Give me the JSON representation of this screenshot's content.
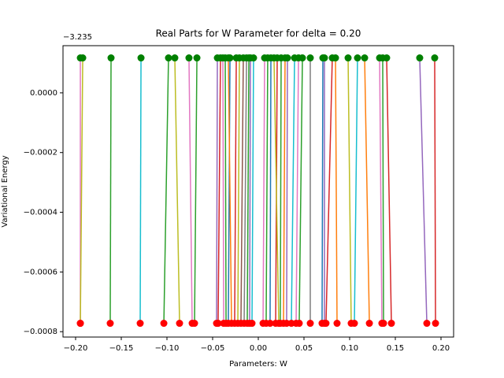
{
  "chart_data": {
    "type": "line",
    "title": "Real Parts for W Parameter for delta = 0.20",
    "xlabel": "Parameters: W",
    "ylabel": "Variational Energy",
    "y_offset": {
      "value": -3.235,
      "label": "−3.235"
    },
    "xlim": [
      -0.2138,
      0.2138
    ],
    "ylim": [
      -0.000818,
      0.000158
    ],
    "xticks": [
      {
        "value": -0.2,
        "label": "−0.20"
      },
      {
        "value": -0.15,
        "label": "−0.15"
      },
      {
        "value": -0.1,
        "label": "−0.10"
      },
      {
        "value": -0.05,
        "label": "−0.05"
      },
      {
        "value": 0,
        "label": "0.00"
      },
      {
        "value": 0.05,
        "label": "0.05"
      },
      {
        "value": 0.1,
        "label": "0.10"
      },
      {
        "value": 0.15,
        "label": "0.15"
      },
      {
        "value": 0.2,
        "label": "0.20"
      }
    ],
    "yticks": [
      {
        "value": 0,
        "label": "0.0000"
      },
      {
        "value": -0.0002,
        "label": "−0.0002"
      },
      {
        "value": -0.0004,
        "label": "−0.0004"
      },
      {
        "value": -0.0006,
        "label": "−0.0006"
      },
      {
        "value": -0.0008,
        "label": "−0.0008"
      }
    ],
    "marker_colors": [
      "#ff0000",
      "#008000"
    ],
    "series": [
      {
        "color": "#e377c2",
        "x": [
          -0.1948,
          -0.1948
        ],
        "values": [
          -0.000772,
          0.000117
        ]
      },
      {
        "color": "#bcbd22",
        "x": [
          -0.1948,
          -0.1922
        ],
        "values": [
          -0.000772,
          0.000117
        ]
      },
      {
        "color": "#2ca02c",
        "x": [
          -0.1621,
          -0.1612
        ],
        "values": [
          -0.000772,
          0.000117
        ]
      },
      {
        "color": "#17becf",
        "x": [
          -0.1293,
          -0.1284
        ],
        "values": [
          -0.000772,
          0.000117
        ]
      },
      {
        "color": "#2ca02c",
        "x": [
          -0.1034,
          -0.0983
        ],
        "values": [
          -0.000772,
          0.000117
        ]
      },
      {
        "color": "#bcbd22",
        "x": [
          -0.0862,
          -0.0914
        ],
        "values": [
          -0.000772,
          0.000117
        ]
      },
      {
        "color": "#e377c2",
        "x": [
          -0.0724,
          -0.0759
        ],
        "values": [
          -0.000772,
          0.000117
        ]
      },
      {
        "color": "#2ca02c",
        "x": [
          -0.0698,
          -0.0672
        ],
        "values": [
          -0.000772,
          0.000117
        ]
      },
      {
        "color": "#9467bd",
        "x": [
          -0.0457,
          -0.0448
        ],
        "values": [
          -0.000772,
          0.000117
        ]
      },
      {
        "color": "#d62728",
        "x": [
          -0.044,
          -0.0414
        ],
        "values": [
          -0.000772,
          0.000117
        ]
      },
      {
        "color": "#e377c2",
        "x": [
          -0.0379,
          -0.0388
        ],
        "values": [
          -0.000772,
          0.000117
        ]
      },
      {
        "color": "#2ca02c",
        "x": [
          -0.0353,
          -0.0362
        ],
        "values": [
          -0.000772,
          0.000117
        ]
      },
      {
        "color": "#1f77b4",
        "x": [
          -0.0328,
          -0.031
        ],
        "values": [
          -0.000772,
          0.000117
        ]
      },
      {
        "color": "#ff7f0e",
        "x": [
          -0.0293,
          -0.0328
        ],
        "values": [
          -0.000772,
          0.000117
        ]
      },
      {
        "color": "#d62728",
        "x": [
          -0.0259,
          -0.0241
        ],
        "values": [
          -0.000772,
          0.000117
        ]
      },
      {
        "color": "#bcbd22",
        "x": [
          -0.0224,
          -0.0207
        ],
        "values": [
          -0.000772,
          0.000117
        ]
      },
      {
        "color": "#8c564b",
        "x": [
          -0.019,
          -0.0164
        ],
        "values": [
          -0.000772,
          0.000117
        ]
      },
      {
        "color": "#7f7f7f",
        "x": [
          -0.0155,
          -0.0129
        ],
        "values": [
          -0.000772,
          0.000117
        ]
      },
      {
        "color": "#2ca02c",
        "x": [
          -0.0121,
          -0.0103
        ],
        "values": [
          -0.000772,
          0.000117
        ]
      },
      {
        "color": "#9467bd",
        "x": [
          -0.0095,
          -0.0086
        ],
        "values": [
          -0.000772,
          0.000117
        ]
      },
      {
        "color": "#17becf",
        "x": [
          -0.0069,
          -0.0052
        ],
        "values": [
          -0.000772,
          0.000117
        ]
      },
      {
        "color": "#e377c2",
        "x": [
          0.0052,
          0.0069
        ],
        "values": [
          -0.000772,
          0.000117
        ]
      },
      {
        "color": "#2ca02c",
        "x": [
          0.0086,
          0.0103
        ],
        "values": [
          -0.000772,
          0.000117
        ]
      },
      {
        "color": "#1f77b4",
        "x": [
          0.0129,
          0.0138
        ],
        "values": [
          -0.000772,
          0.000117
        ]
      },
      {
        "color": "#d62728",
        "x": [
          0.019,
          0.0207
        ],
        "values": [
          -0.000772,
          0.000117
        ]
      },
      {
        "color": "#bcbd22",
        "x": [
          0.0224,
          0.0172
        ],
        "values": [
          -0.000772,
          0.000117
        ]
      },
      {
        "color": "#2ca02c",
        "x": [
          0.0241,
          0.025
        ],
        "values": [
          -0.000772,
          0.000117
        ]
      },
      {
        "color": "#ff7f0e",
        "x": [
          0.0276,
          0.0293
        ],
        "values": [
          -0.000772,
          0.000117
        ]
      },
      {
        "color": "#9467bd",
        "x": [
          0.031,
          0.0319
        ],
        "values": [
          -0.000772,
          0.000117
        ]
      },
      {
        "color": "#17becf",
        "x": [
          0.0362,
          0.0397
        ],
        "values": [
          -0.000772,
          0.000117
        ]
      },
      {
        "color": "#e377c2",
        "x": [
          0.0414,
          0.044
        ],
        "values": [
          -0.000772,
          0.000117
        ]
      },
      {
        "color": "#2ca02c",
        "x": [
          0.0448,
          0.0483
        ],
        "values": [
          -0.000772,
          0.000117
        ]
      },
      {
        "color": "#7f7f7f",
        "x": [
          0.0569,
          0.0569
        ],
        "values": [
          -0.000772,
          0.000117
        ]
      },
      {
        "color": "#1f77b4",
        "x": [
          0.0698,
          0.0707
        ],
        "values": [
          -0.000772,
          0.000117
        ]
      },
      {
        "color": "#9467bd",
        "x": [
          0.0724,
          0.0724
        ],
        "values": [
          -0.000772,
          0.000117
        ]
      },
      {
        "color": "#d62728",
        "x": [
          0.0741,
          0.081
        ],
        "values": [
          -0.000772,
          0.000117
        ]
      },
      {
        "color": "#ff7f0e",
        "x": [
          0.0862,
          0.0845
        ],
        "values": [
          -0.000772,
          0.000117
        ]
      },
      {
        "color": "#bcbd22",
        "x": [
          0.1017,
          0.0983
        ],
        "values": [
          -0.000772,
          0.000117
        ]
      },
      {
        "color": "#17becf",
        "x": [
          0.1052,
          0.1086
        ],
        "values": [
          -0.000772,
          0.000117
        ]
      },
      {
        "color": "#ff7f0e",
        "x": [
          0.1216,
          0.1164
        ],
        "values": [
          -0.000772,
          0.000117
        ]
      },
      {
        "color": "#e377c2",
        "x": [
          0.1353,
          0.1328
        ],
        "values": [
          -0.000772,
          0.000117
        ]
      },
      {
        "color": "#2ca02c",
        "x": [
          0.1371,
          0.1362
        ],
        "values": [
          -0.000772,
          0.000117
        ]
      },
      {
        "color": "#d62728",
        "x": [
          0.1457,
          0.1405
        ],
        "values": [
          -0.000772,
          0.000117
        ]
      },
      {
        "color": "#9467bd",
        "x": [
          0.1845,
          0.1767
        ],
        "values": [
          -0.000772,
          0.000117
        ]
      },
      {
        "color": "#d62728",
        "x": [
          0.194,
          0.1931
        ],
        "values": [
          -0.000772,
          0.000117
        ]
      }
    ]
  }
}
